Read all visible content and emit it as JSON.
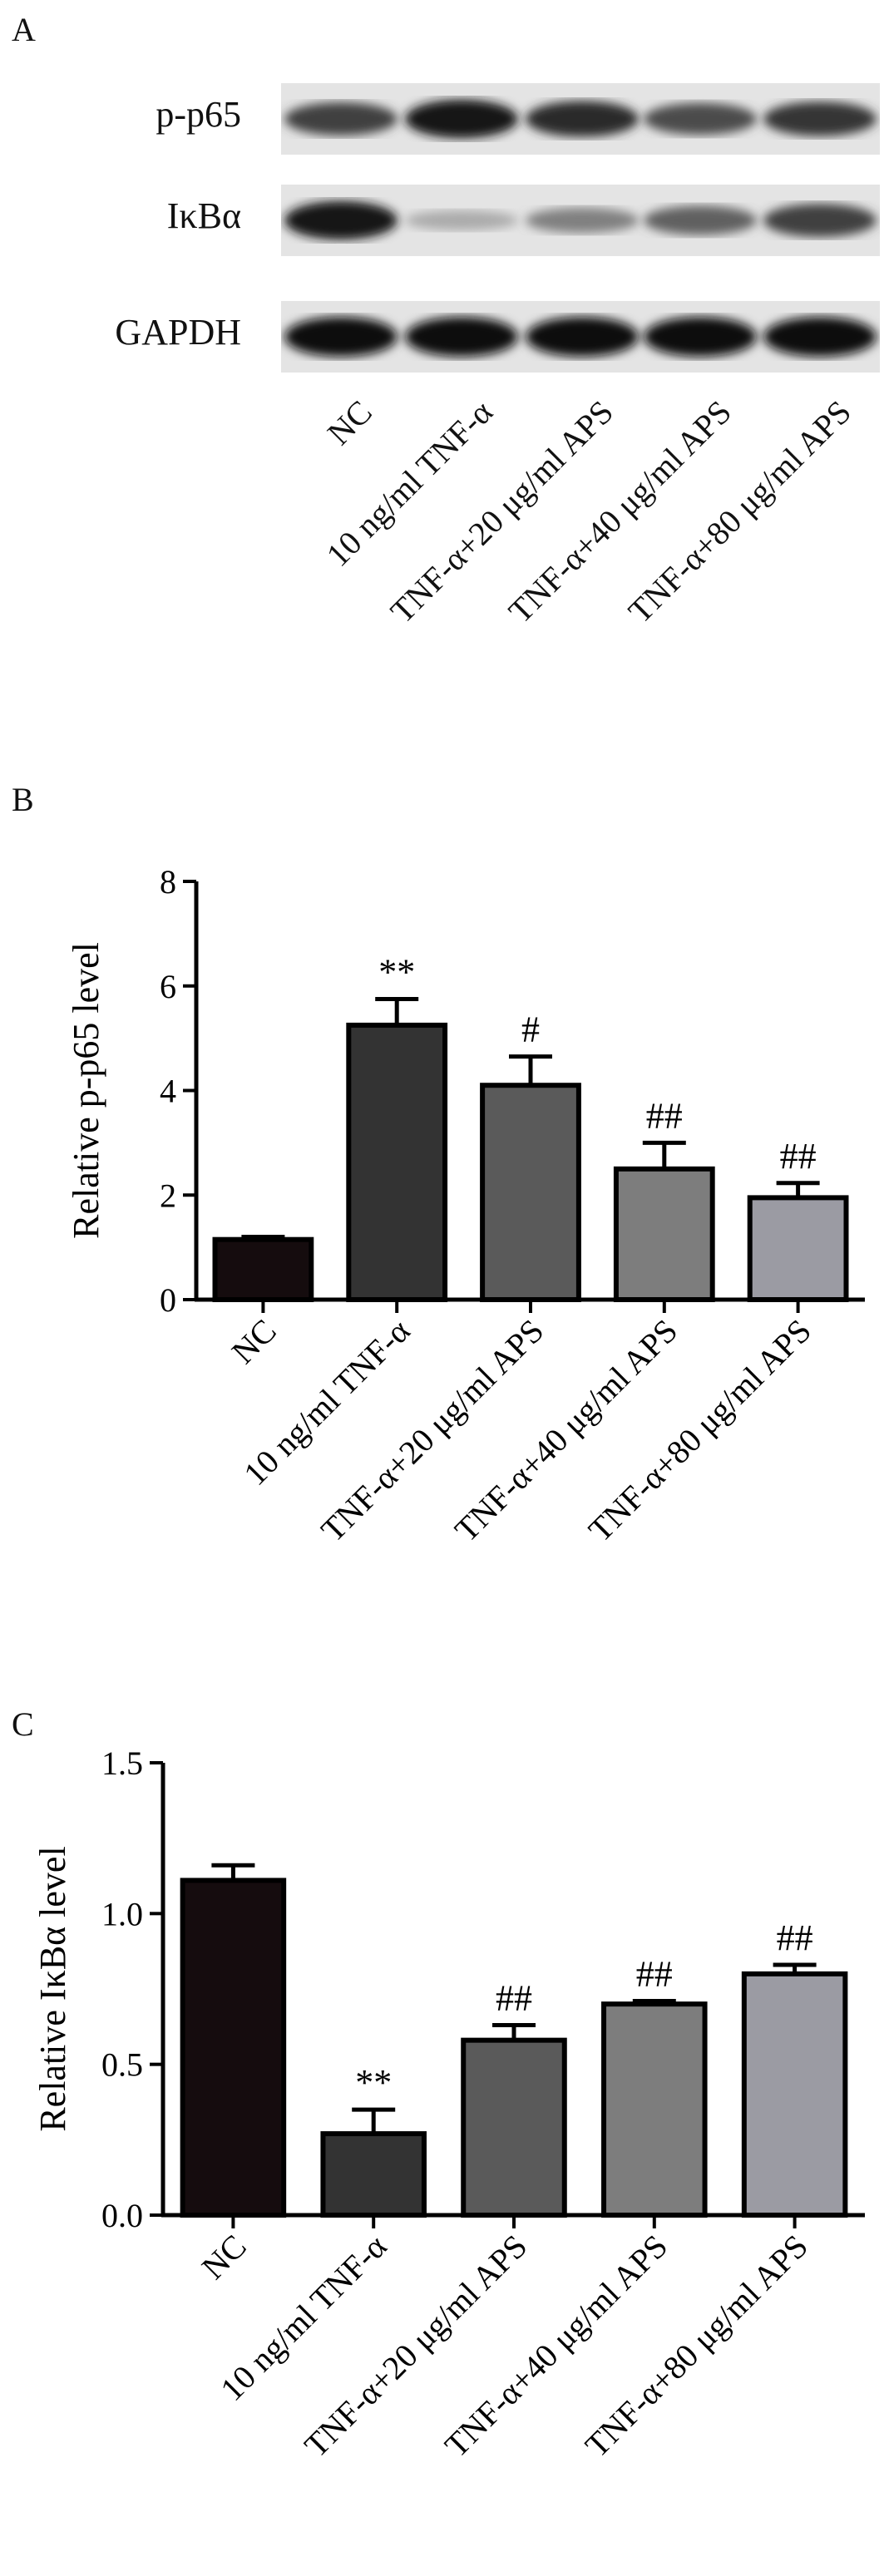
{
  "panels": {
    "a_label": "A",
    "b_label": "B",
    "c_label": "C"
  },
  "blot": {
    "rows": [
      {
        "name": "p-p65",
        "intensity": [
          0.75,
          0.95,
          0.85,
          0.7,
          0.8
        ]
      },
      {
        "name": "IκBα",
        "intensity": [
          0.95,
          0.25,
          0.45,
          0.6,
          0.75
        ]
      },
      {
        "name": "GAPDH",
        "intensity": [
          1.0,
          1.0,
          1.0,
          1.0,
          1.0
        ]
      }
    ],
    "lanes": [
      "NC",
      "10 ng/ml TNF-α",
      "TNF-α+20 μg/ml APS",
      "TNF-α+40 μg/ml APS",
      "TNF-α+80 μg/ml APS"
    ]
  },
  "chart_data": [
    {
      "type": "bar",
      "panel": "B",
      "categories": [
        "NC",
        "10 ng/ml TNF-α",
        "TNF-α+20 μg/ml APS",
        "TNF-α+40 μg/ml APS",
        "TNF-α+80 μg/ml APS"
      ],
      "values": [
        1.15,
        5.25,
        4.1,
        2.5,
        1.95
      ],
      "errors": [
        0.05,
        0.5,
        0.55,
        0.5,
        0.28
      ],
      "annotations": [
        "",
        "**",
        "#",
        "##",
        "##"
      ],
      "ylabel": "Relative p-p65 level",
      "ylim": [
        0,
        8
      ],
      "yticks": [
        "0",
        "2",
        "4",
        "6",
        "8"
      ],
      "colors": [
        "#150c0e",
        "#333333",
        "#5a5a5a",
        "#7d7d7d",
        "#9b9ba3"
      ]
    },
    {
      "type": "bar",
      "panel": "C",
      "categories": [
        "NC",
        "10 ng/ml TNF-α",
        "TNF-α+20 μg/ml APS",
        "TNF-α+40 μg/ml APS",
        "TNF-α+80 μg/ml APS"
      ],
      "values": [
        1.11,
        0.27,
        0.58,
        0.7,
        0.8
      ],
      "errors": [
        0.05,
        0.08,
        0.05,
        0.01,
        0.03
      ],
      "annotations": [
        "",
        "**",
        "##",
        "##",
        "##"
      ],
      "ylabel": "Relative IκBα level",
      "ylim": [
        0,
        1.5
      ],
      "yticks": [
        "0.0",
        "0.5",
        "1.0",
        "1.5"
      ],
      "colors": [
        "#150c0e",
        "#333333",
        "#5a5a5a",
        "#7d7d7d",
        "#9b9ba3"
      ]
    }
  ]
}
